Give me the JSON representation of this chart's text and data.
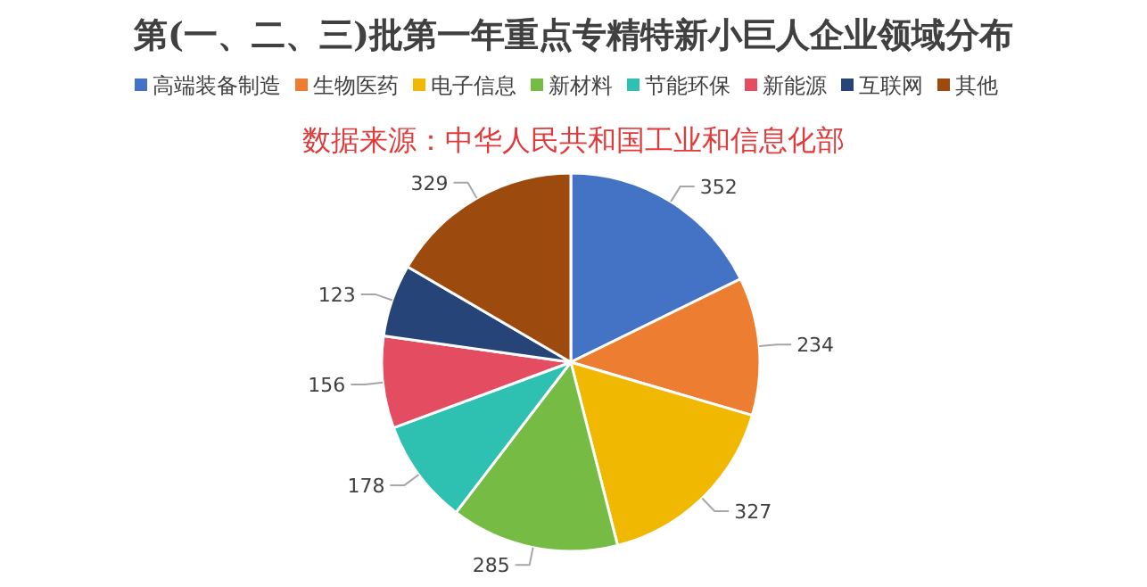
{
  "chart_data": {
    "type": "pie",
    "title": "第(一、二、三)批第一年重点专精特新小巨人企业领域分布",
    "annotations": [
      "数据来源：中华人民共和国工业和信息化部"
    ],
    "categories": [
      "高端装备制造",
      "生物医药",
      "电子信息",
      "新材料",
      "节能环保",
      "新能源",
      "互联网",
      "其他"
    ],
    "values": [
      352,
      234,
      327,
      285,
      178,
      156,
      123,
      329
    ],
    "colors": [
      "#4472c4",
      "#ed7d31",
      "#f0b800",
      "#76bc44",
      "#2ec0b0",
      "#e44c61",
      "#264478",
      "#9c4a0e"
    ],
    "data_labels": true,
    "legend": "top"
  }
}
